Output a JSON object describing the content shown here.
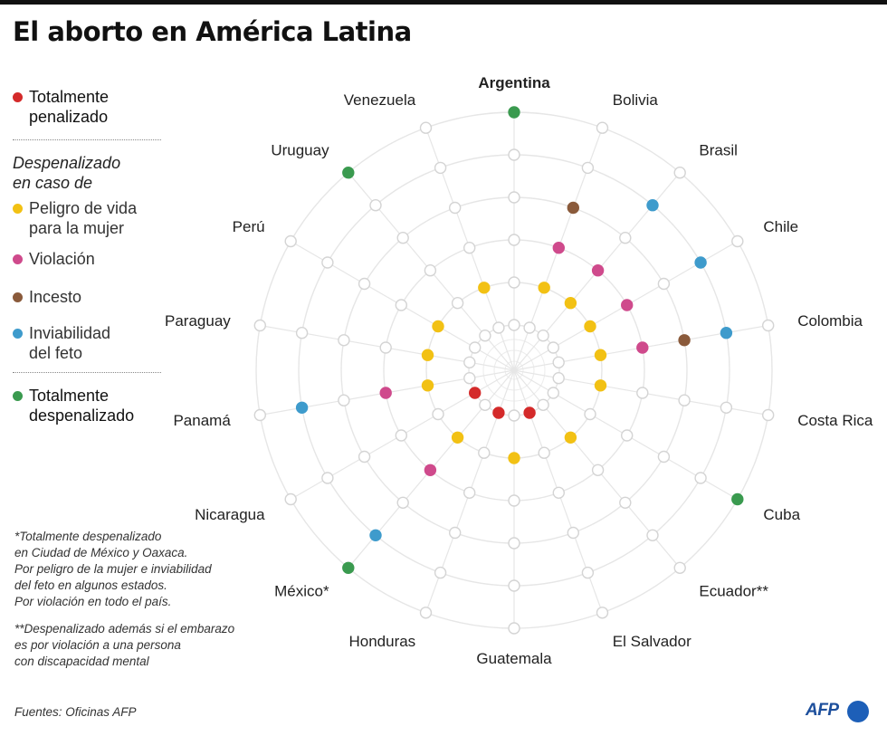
{
  "title": "El aborto en América Latina",
  "legend": {
    "totally_penalized": {
      "label_line1": "Totalmente",
      "label_line2": "penalizado",
      "color": "#d42a2a"
    },
    "heading_line1": "Despenalizado",
    "heading_line2": "en caso de",
    "life_danger": {
      "label_line1": "Peligro de vida",
      "label_line2": "para la mujer",
      "color": "#f2c114"
    },
    "rape": {
      "label": "Violación",
      "color": "#cf4a8c"
    },
    "incest": {
      "label": "Incesto",
      "color": "#8a5a3b"
    },
    "fetus_inviability": {
      "label_line1": "Inviabilidad",
      "label_line2": "del feto",
      "color": "#3e9bcc"
    },
    "totally_decriminalized": {
      "label_line1": "Totalmente",
      "label_line2": "despenalizado",
      "color": "#3a9a4f"
    }
  },
  "notes": {
    "note1": [
      "*Totalmente despenalizado",
      "en Ciudad de México y Oaxaca.",
      "Por peligro de la mujer e inviabilidad",
      "del feto en algunos estados.",
      "Por violación en todo el país."
    ],
    "note2": [
      "**Despenalizado además si el embarazo",
      "es por violación a una persona",
      "con discapacidad mental"
    ]
  },
  "source": "Fuentes: Oficinas AFP",
  "logo_text": "AFP",
  "chart_data": {
    "type": "radial-dot-matrix",
    "rings_order": [
      "totally_penalized",
      "life_danger",
      "rape",
      "incest",
      "fetus_inviability",
      "totally_decriminalized"
    ],
    "colors": {
      "totally_penalized": "#d42a2a",
      "life_danger": "#f2c114",
      "rape": "#cf4a8c",
      "incest": "#8a5a3b",
      "fetus_inviability": "#3e9bcc",
      "totally_decriminalized": "#3a9a4f",
      "empty": "#ffffff"
    },
    "countries": [
      {
        "name": "Argentina",
        "bold": true,
        "status": [
          "totally_decriminalized"
        ]
      },
      {
        "name": "Bolivia",
        "status": [
          "life_danger",
          "rape",
          "incest"
        ]
      },
      {
        "name": "Brasil",
        "status": [
          "life_danger",
          "rape",
          "fetus_inviability"
        ]
      },
      {
        "name": "Chile",
        "status": [
          "life_danger",
          "rape",
          "fetus_inviability"
        ]
      },
      {
        "name": "Colombia",
        "status": [
          "life_danger",
          "rape",
          "incest",
          "fetus_inviability"
        ]
      },
      {
        "name": "Costa Rica",
        "status": [
          "life_danger"
        ]
      },
      {
        "name": "Cuba",
        "status": [
          "totally_decriminalized"
        ]
      },
      {
        "name": "Ecuador**",
        "status": [
          "life_danger"
        ]
      },
      {
        "name": "El Salvador",
        "status": [
          "totally_penalized"
        ]
      },
      {
        "name": "Guatemala",
        "status": [
          "life_danger"
        ]
      },
      {
        "name": "Honduras",
        "status": [
          "totally_penalized"
        ]
      },
      {
        "name": "México*",
        "status": [
          "life_danger",
          "rape",
          "fetus_inviability",
          "totally_decriminalized"
        ]
      },
      {
        "name": "Nicaragua",
        "status": [
          "totally_penalized"
        ]
      },
      {
        "name": "Panamá",
        "status": [
          "life_danger",
          "rape",
          "fetus_inviability"
        ]
      },
      {
        "name": "Paraguay",
        "status": [
          "life_danger"
        ]
      },
      {
        "name": "Perú",
        "status": [
          "life_danger"
        ]
      },
      {
        "name": "Uruguay",
        "status": [
          "totally_decriminalized"
        ]
      },
      {
        "name": "Venezuela",
        "status": [
          "life_danger"
        ]
      }
    ]
  }
}
